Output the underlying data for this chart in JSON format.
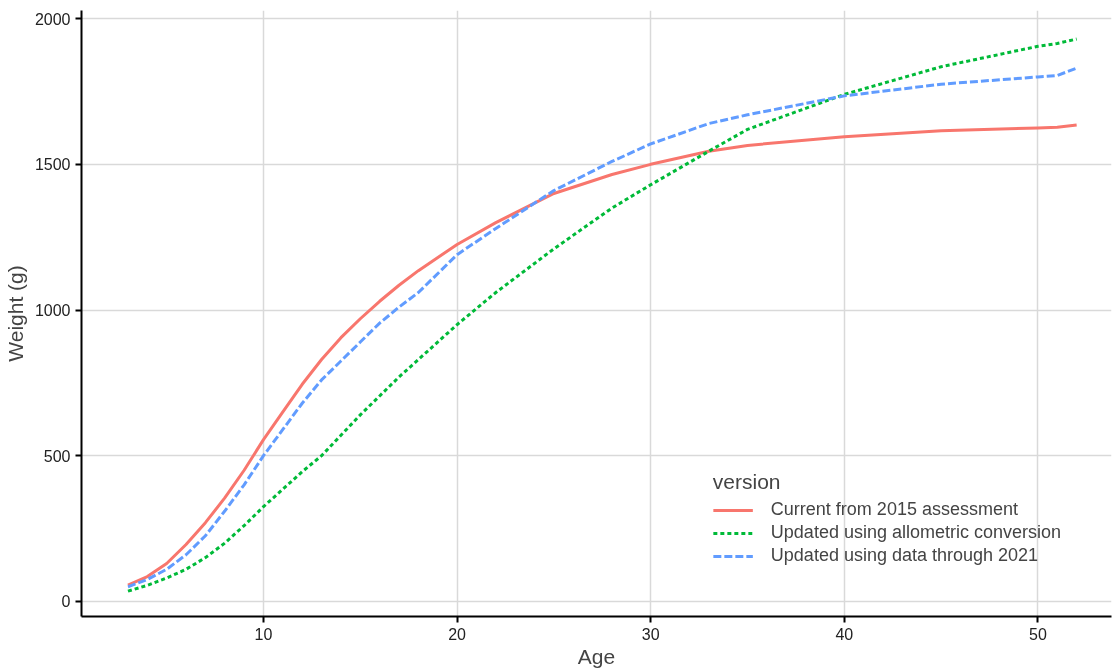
{
  "chart_data": {
    "type": "line",
    "xlabel": "Age",
    "ylabel": "Weight (g)",
    "legend_title": "version",
    "x": [
      3,
      4,
      5,
      6,
      7,
      8,
      9,
      10,
      11,
      12,
      13,
      14,
      15,
      16,
      17,
      18,
      20,
      22,
      25,
      28,
      30,
      33,
      35,
      40,
      45,
      50,
      51,
      52
    ],
    "series": [
      {
        "name": "Current from 2015 assessment",
        "color": "#f8766d",
        "line_style": "solid",
        "values": [
          56,
          85,
          130,
          195,
          270,
          355,
          450,
          555,
          650,
          745,
          830,
          905,
          970,
          1030,
          1085,
          1135,
          1225,
          1300,
          1400,
          1465,
          1500,
          1545,
          1565,
          1595,
          1615,
          1625,
          1627,
          1635
        ]
      },
      {
        "name": "Updated using allometric conversion",
        "color": "#00ba38",
        "line_style": "dotted",
        "values": [
          35,
          55,
          80,
          110,
          150,
          200,
          260,
          325,
          385,
          445,
          500,
          570,
          640,
          705,
          770,
          830,
          950,
          1060,
          1210,
          1350,
          1430,
          1545,
          1620,
          1740,
          1835,
          1905,
          1915,
          1930
        ]
      },
      {
        "name": "Updated using data through 2021",
        "color": "#619cff",
        "line_style": "dashed",
        "values": [
          50,
          75,
          110,
          160,
          225,
          310,
          400,
          500,
          590,
          680,
          760,
          825,
          890,
          955,
          1010,
          1060,
          1190,
          1280,
          1410,
          1510,
          1570,
          1640,
          1670,
          1735,
          1775,
          1800,
          1805,
          1830
        ]
      }
    ],
    "xlim": [
      0.6,
      53.8
    ],
    "ylim": [
      -52,
      2028
    ],
    "xticks": [
      10,
      20,
      30,
      40,
      50
    ],
    "yticks": [
      0,
      500,
      1000,
      1500,
      2000
    ],
    "grid": true,
    "legend": "bottom right"
  }
}
